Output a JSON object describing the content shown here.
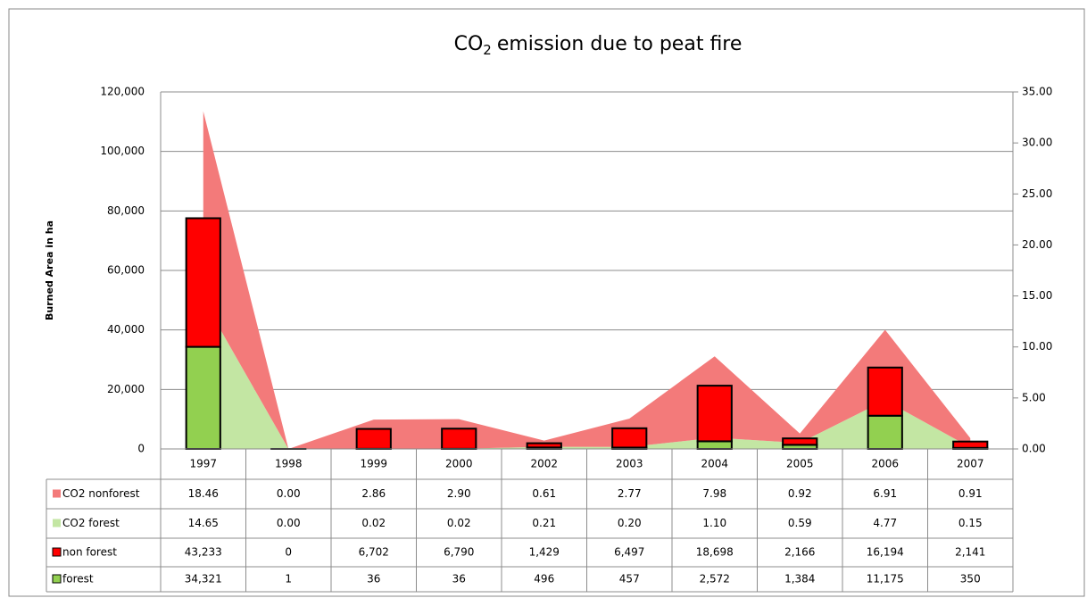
{
  "chart_data": {
    "type": "bar",
    "stacked": true,
    "title": {
      "main": "CO",
      "subscript": "2",
      "rest": "emission due to peat fire"
    },
    "y_label": "Burned Area in ha",
    "categories": [
      "1997",
      "1998",
      "1999",
      "2000",
      "2002",
      "2003",
      "2004",
      "2005",
      "2006",
      "2007"
    ],
    "series": [
      {
        "name": "CO2 nonforest",
        "type": "area",
        "axis": "y2",
        "color": "#f37a7a",
        "values": [
          18.46,
          0,
          2.86,
          2.9,
          0.61,
          2.77,
          7.98,
          0.92,
          6.91,
          0.91
        ],
        "value_labels": [
          "18.46",
          "0.00",
          "2.86",
          "2.90",
          "0.61",
          "2.77",
          "7.98",
          "0.92",
          "6.91",
          "0.91"
        ]
      },
      {
        "name": "CO2 forest",
        "type": "area",
        "axis": "y2",
        "color": "#c3e6a3",
        "values": [
          14.65,
          0,
          0.02,
          0.02,
          0.21,
          0.2,
          1.1,
          0.59,
          4.77,
          0.15
        ],
        "value_labels": [
          "14.65",
          "0.00",
          "0.02",
          "0.02",
          "0.21",
          "0.20",
          "1.10",
          "0.59",
          "4.77",
          "0.15"
        ]
      },
      {
        "name": "non forest",
        "type": "bar",
        "color": "#ff0000",
        "values": [
          43233,
          0,
          6702,
          6790,
          1429,
          6497,
          18698,
          2166,
          16194,
          2141
        ],
        "value_labels": [
          "43,233",
          "0",
          "6,702",
          "6,790",
          "1,429",
          "6,497",
          "18,698",
          "2,166",
          "16,194",
          "2,141"
        ]
      },
      {
        "name": "forest",
        "type": "bar",
        "color": "#92d050",
        "values": [
          34321,
          1,
          36,
          36,
          496,
          457,
          2572,
          1384,
          11175,
          350
        ],
        "value_labels": [
          "34,321",
          "1",
          "36",
          "36",
          "496",
          "457",
          "2,572",
          "1,384",
          "11,175",
          "350"
        ]
      }
    ],
    "ylim": [
      0,
      120000
    ],
    "yticks": [
      0,
      {
        "value": 20000,
        "label": "20,000"
      },
      {
        "value": 40000,
        "label": "40,000"
      },
      {
        "value": 60000,
        "label": "60,000"
      },
      {
        "value": 80000,
        "label": "80,000"
      },
      {
        "value": 100000,
        "label": "100,000"
      },
      {
        "value": 120000,
        "label": "120,000"
      }
    ],
    "y2lim": [
      0,
      35
    ],
    "y2ticks": [
      {
        "value": 0,
        "label": "0.00"
      },
      {
        "value": 5,
        "label": "5.00"
      },
      {
        "value": 10,
        "label": "10.00"
      },
      {
        "value": 15,
        "label": "15.00"
      },
      {
        "value": 20,
        "label": "20.00"
      },
      {
        "value": 25,
        "label": "25.00"
      },
      {
        "value": 30,
        "label": "30.00"
      },
      {
        "value": 35,
        "label": "35.00"
      }
    ],
    "grid": true,
    "legend": "table"
  }
}
